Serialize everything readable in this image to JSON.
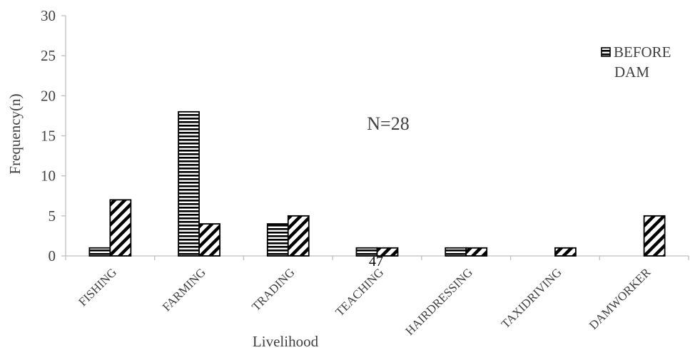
{
  "chart_data": {
    "type": "bar",
    "categories": [
      "FISHING",
      "FARMING",
      "TRADING",
      "TEACHING",
      "HAIRDRESSING",
      "TAXIDRIVING",
      "DAMWORKER"
    ],
    "series": [
      {
        "name": "BEFORE DAM",
        "pattern": "horizontal-lines",
        "values": [
          1,
          18,
          4,
          1,
          1,
          0,
          0
        ]
      },
      {
        "pattern": "diagonal-lines",
        "values": [
          7,
          4,
          5,
          1,
          1,
          1,
          5
        ]
      }
    ],
    "ylabel": "Frequency(n)",
    "xlabel": "Livelihood",
    "ylim": [
      0,
      30
    ],
    "yticks": [
      0,
      5,
      10,
      15,
      20,
      25,
      30
    ],
    "annotation": "N=28",
    "legend": {
      "lines": [
        "BEFORE",
        "DAM"
      ],
      "placement": "right"
    },
    "grid": false
  },
  "page_number": "47"
}
